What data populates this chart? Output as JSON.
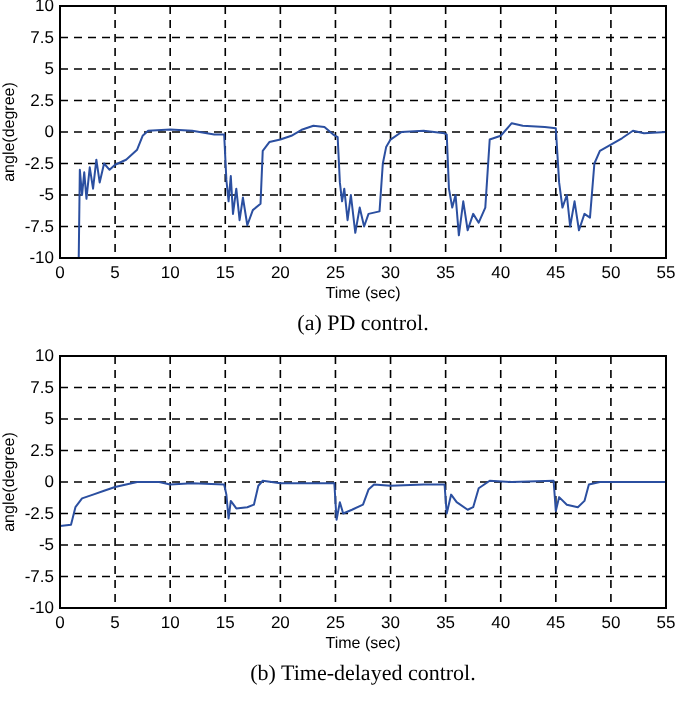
{
  "chart_data": [
    {
      "type": "line",
      "title": "(a) PD control.",
      "xlabel": "Time (sec)",
      "ylabel": "angle(degree)",
      "xlim": [
        0,
        55
      ],
      "ylim": [
        -10,
        10
      ],
      "xticks": [
        0,
        5,
        10,
        15,
        20,
        25,
        30,
        35,
        40,
        45,
        50,
        55
      ],
      "yticks": [
        -10,
        -7.5,
        -5,
        -2.5,
        0,
        2.5,
        5,
        7.5,
        10
      ],
      "grid": true,
      "line_style": "solid",
      "series": [
        {
          "color": "#2b4fa0",
          "x": [
            1.7,
            1.8,
            2.0,
            2.2,
            2.4,
            2.7,
            3.0,
            3.3,
            3.6,
            4,
            4.5,
            5,
            6,
            7,
            7.5,
            8,
            10,
            12,
            14,
            14.9,
            15.1,
            15.3,
            15.5,
            15.7,
            16,
            16.3,
            16.6,
            17,
            17.5,
            18.2,
            18.4,
            19,
            20,
            21,
            22,
            23,
            24,
            24.8,
            25.2,
            25.4,
            25.6,
            25.8,
            26.1,
            26.4,
            26.8,
            27.2,
            27.6,
            28,
            29,
            29.3,
            29.6,
            30,
            31,
            33,
            34.9,
            35.1,
            35.3,
            35.6,
            35.9,
            36.2,
            36.6,
            37,
            37.5,
            38,
            38.6,
            39,
            40,
            41,
            42,
            44,
            45,
            45.3,
            45.6,
            46,
            46.3,
            46.7,
            47.1,
            47.6,
            48.1,
            48.5,
            49,
            50,
            51,
            52,
            53,
            55
          ],
          "values": [
            -10,
            -3,
            -5,
            -3.2,
            -5.3,
            -2.8,
            -4.5,
            -2.2,
            -4,
            -2.5,
            -3,
            -2.6,
            -2.2,
            -1.4,
            -0.3,
            0.1,
            0.2,
            0.1,
            -0.2,
            -0.2,
            -3.8,
            -5.5,
            -3.5,
            -6.5,
            -4.5,
            -7,
            -5.2,
            -7.4,
            -6.2,
            -5.7,
            -1.5,
            -0.8,
            -0.6,
            -0.3,
            0.2,
            0.5,
            0.4,
            -0.2,
            -0.4,
            -4,
            -5.5,
            -4.5,
            -7,
            -5,
            -8,
            -6,
            -7.5,
            -6.5,
            -6.3,
            -2.5,
            -1.2,
            -0.6,
            0,
            0.1,
            -0.1,
            -0.2,
            -4.5,
            -6,
            -5,
            -8.2,
            -5.5,
            -7.8,
            -6.5,
            -7.2,
            -6,
            -0.6,
            -0.3,
            0.7,
            0.5,
            0.4,
            0.3,
            -4,
            -6,
            -5,
            -7.5,
            -5.5,
            -7.8,
            -6.5,
            -6.8,
            -2.5,
            -1.5,
            -1,
            -0.5,
            0.1,
            -0.1,
            0
          ]
        }
      ]
    },
    {
      "type": "line",
      "title": "(b) Time-delayed control.",
      "xlabel": "Time (sec)",
      "ylabel": "angle(degree)",
      "xlim": [
        0,
        55
      ],
      "ylim": [
        -10,
        10
      ],
      "xticks": [
        0,
        5,
        10,
        15,
        20,
        25,
        30,
        35,
        40,
        45,
        50,
        55
      ],
      "yticks": [
        -10,
        -7.5,
        -5,
        -2.5,
        0,
        2.5,
        5,
        7.5,
        10
      ],
      "grid": true,
      "line_style": "solid",
      "series": [
        {
          "color": "#2b4fa0",
          "x": [
            0,
            1,
            1.4,
            2,
            3,
            4,
            5,
            6,
            7,
            9,
            10,
            12,
            14.9,
            15.1,
            15.3,
            15.5,
            16,
            17,
            17.6,
            18,
            18.4,
            20,
            24.9,
            25.1,
            25.4,
            25.7,
            26.5,
            27.5,
            28,
            28.5,
            30,
            33,
            34.9,
            35.1,
            35.5,
            36,
            37,
            37.5,
            38,
            39,
            41,
            44.8,
            45,
            45.3,
            46,
            47,
            47.6,
            48,
            49,
            55
          ],
          "values": [
            -3.5,
            -3.4,
            -2,
            -1.3,
            -1,
            -0.7,
            -0.4,
            -0.2,
            0,
            0,
            -0.2,
            -0.1,
            -0.2,
            -1,
            -2.9,
            -1.5,
            -2.1,
            -2,
            -1.8,
            -0.3,
            0.1,
            -0.1,
            -0.1,
            -3,
            -1.6,
            -2.5,
            -2.2,
            -1.8,
            -0.6,
            -0.2,
            -0.3,
            -0.2,
            -0.2,
            -2.5,
            -1,
            -1.6,
            -2.2,
            -2,
            -0.5,
            0.1,
            0,
            0.1,
            -2.3,
            -1.2,
            -1.8,
            -2,
            -1.5,
            -0.2,
            0,
            0
          ]
        }
      ]
    }
  ]
}
